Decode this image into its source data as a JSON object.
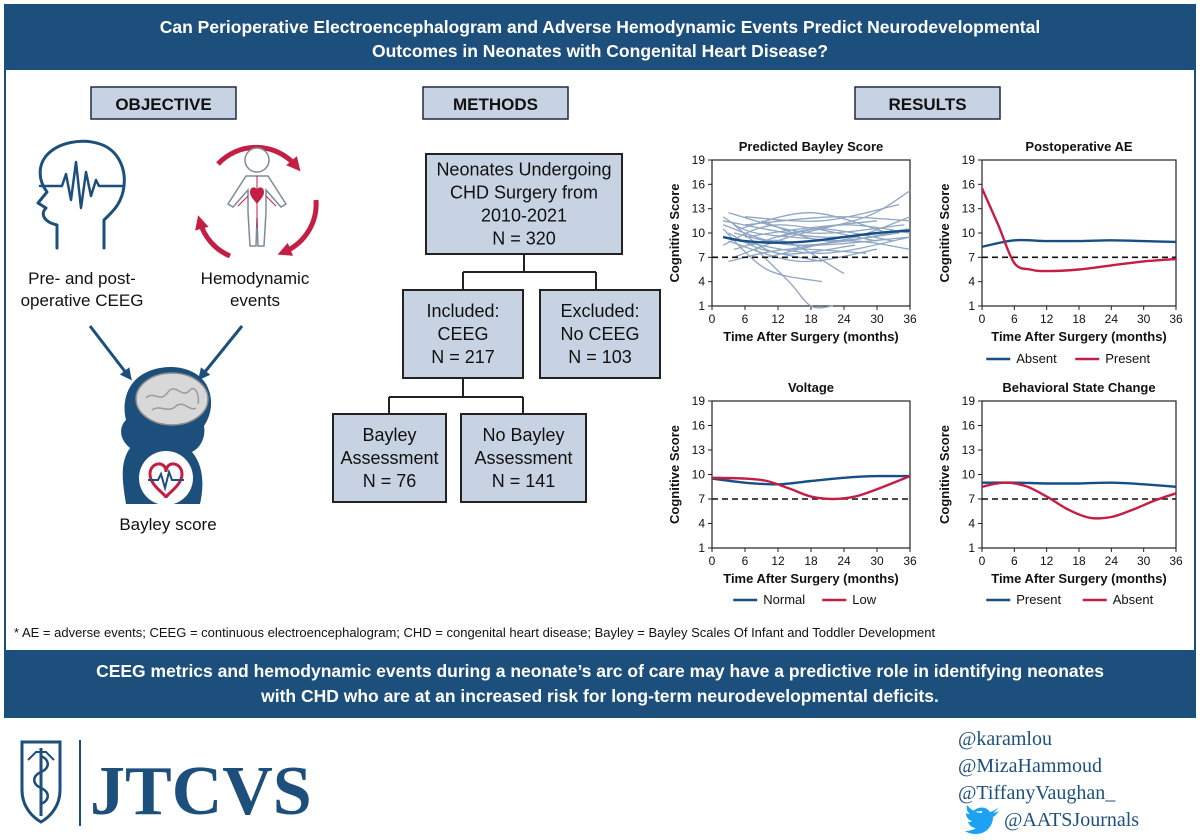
{
  "header": {
    "title_line1": "Can Perioperative Electroencephalogram and Adverse Hemodynamic Events Predict Neurodevelopmental",
    "title_line2": "Outcomes in Neonates with Congenital Heart Disease?"
  },
  "sections": {
    "objective": "OBJECTIVE",
    "methods": "METHODS",
    "results": "RESULTS"
  },
  "objective": {
    "ceeg_line1": "Pre- and post-",
    "ceeg_line2": "operative CEEG",
    "hemo_line1": "Hemodynamic",
    "hemo_line2": "events",
    "bayley": "Bayley score"
  },
  "flowchart": {
    "root": [
      "Neonates Undergoing",
      "CHD Surgery from",
      "2010-2021",
      "N = 320"
    ],
    "included": [
      "Included:",
      "CEEG",
      "N = 217"
    ],
    "excluded": [
      "Excluded:",
      "No CEEG",
      "N = 103"
    ],
    "bayley": [
      "Bayley",
      "Assessment",
      "N = 76"
    ],
    "no_bayley": [
      "No Bayley",
      "Assessment",
      "N = 141"
    ]
  },
  "colors": {
    "navy": "#1d4f7c",
    "pale_blue": "#c7d2e2",
    "crimson": "#c41e45",
    "blue_line": "#164f86",
    "spaghetti": "#8fa6c3"
  },
  "chart_data": [
    {
      "type": "line",
      "title": "Predicted Bayley Score",
      "xlabel": "Time After Surgery (months)",
      "ylabel": "Cognitive Score",
      "xlim": [
        0,
        36
      ],
      "ylim": [
        1,
        19
      ],
      "xticks": [
        0,
        6,
        12,
        18,
        24,
        30,
        36
      ],
      "yticks": [
        1,
        4,
        7,
        10,
        13,
        16,
        19
      ],
      "reference_line": 7,
      "series": [
        {
          "x": [
            2,
            6,
            12,
            18,
            24,
            30,
            36
          ],
          "y": [
            9.5,
            9.0,
            8.8,
            9.0,
            9.5,
            10.0,
            10.3
          ]
        }
      ],
      "individual_trajectories": [
        {
          "x": [
            2,
            20,
            36
          ],
          "y": [
            11.5,
            9.5,
            10.5
          ]
        },
        {
          "x": [
            3,
            18,
            35
          ],
          "y": [
            12.5,
            10.0,
            11.0
          ]
        },
        {
          "x": [
            4,
            16,
            34
          ],
          "y": [
            10.0,
            8.5,
            10.0
          ]
        },
        {
          "x": [
            2,
            12,
            30
          ],
          "y": [
            8.5,
            11.0,
            9.0
          ]
        },
        {
          "x": [
            5,
            20,
            36
          ],
          "y": [
            9.0,
            7.5,
            9.5
          ]
        },
        {
          "x": [
            3,
            14,
            28
          ],
          "y": [
            6.5,
            8.0,
            7.5
          ]
        },
        {
          "x": [
            6,
            22,
            36
          ],
          "y": [
            11.0,
            12.0,
            11.5
          ]
        },
        {
          "x": [
            2,
            10,
            20
          ],
          "y": [
            10.5,
            5.5,
            4.0
          ]
        },
        {
          "x": [
            8,
            14,
            18,
            22
          ],
          "y": [
            8.0,
            4.0,
            1.0,
            1.0
          ]
        },
        {
          "x": [
            4,
            14,
            28,
            36
          ],
          "y": [
            7.0,
            9.5,
            12.0,
            15.2
          ]
        },
        {
          "x": [
            6,
            20,
            34
          ],
          "y": [
            12.0,
            11.5,
            13.5
          ]
        },
        {
          "x": [
            3,
            16,
            30
          ],
          "y": [
            9.0,
            6.5,
            8.0
          ]
        },
        {
          "x": [
            10,
            24,
            36
          ],
          "y": [
            7.0,
            9.0,
            8.0
          ]
        },
        {
          "x": [
            2,
            8,
            24
          ],
          "y": [
            12.0,
            10.0,
            9.0
          ]
        },
        {
          "x": [
            5,
            18,
            32
          ],
          "y": [
            10.5,
            12.5,
            10.0
          ]
        },
        {
          "x": [
            12,
            24,
            36
          ],
          "y": [
            9.5,
            11.0,
            10.0
          ]
        },
        {
          "x": [
            4,
            12,
            26
          ],
          "y": [
            11.0,
            7.5,
            8.5
          ]
        },
        {
          "x": [
            7,
            19,
            33
          ],
          "y": [
            8.5,
            10.5,
            9.0
          ]
        },
        {
          "x": [
            14,
            26,
            36
          ],
          "y": [
            8.0,
            9.5,
            12.0
          ]
        },
        {
          "x": [
            3,
            9,
            20
          ],
          "y": [
            10.0,
            8.0,
            6.5
          ]
        },
        {
          "x": [
            6,
            16,
            30
          ],
          "y": [
            9.5,
            10.5,
            11.5
          ]
        },
        {
          "x": [
            2,
            15,
            36
          ],
          "y": [
            11.0,
            8.5,
            9.5
          ]
        },
        {
          "x": [
            9,
            21,
            36
          ],
          "y": [
            11.5,
            9.0,
            10.5
          ]
        },
        {
          "x": [
            4,
            13,
            24
          ],
          "y": [
            8.0,
            9.0,
            5.0
          ]
        }
      ]
    },
    {
      "type": "line",
      "title": "Postoperative AE",
      "xlabel": "Time After Surgery (months)",
      "ylabel": "Cognitive Score",
      "xlim": [
        0,
        36
      ],
      "ylim": [
        1,
        19
      ],
      "xticks": [
        0,
        6,
        12,
        18,
        24,
        30,
        36
      ],
      "yticks": [
        1,
        4,
        7,
        10,
        13,
        16,
        19
      ],
      "reference_line": 7,
      "legend": "bottom",
      "series": [
        {
          "name": "Absent",
          "color": "#164f86",
          "x": [
            0,
            6,
            12,
            18,
            24,
            30,
            36
          ],
          "y": [
            8.3,
            9.1,
            9.0,
            9.0,
            9.1,
            9.0,
            8.9
          ]
        },
        {
          "name": "Present",
          "color": "#c41e45",
          "x": [
            0,
            3,
            6,
            9,
            12,
            18,
            24,
            30,
            36
          ],
          "y": [
            15.5,
            11.0,
            6.3,
            5.5,
            5.3,
            5.5,
            6.0,
            6.5,
            6.8
          ]
        }
      ]
    },
    {
      "type": "line",
      "title": "Voltage",
      "xlabel": "Time After Surgery (months)",
      "ylabel": "Cognitive Score",
      "xlim": [
        0,
        36
      ],
      "ylim": [
        1,
        19
      ],
      "xticks": [
        0,
        6,
        12,
        18,
        24,
        30,
        36
      ],
      "yticks": [
        1,
        4,
        7,
        10,
        13,
        16,
        19
      ],
      "reference_line": 7,
      "legend": "bottom",
      "series": [
        {
          "name": "Normal",
          "color": "#164f86",
          "x": [
            0,
            6,
            12,
            18,
            24,
            30,
            36
          ],
          "y": [
            9.5,
            9.0,
            8.8,
            9.2,
            9.6,
            9.8,
            9.8
          ]
        },
        {
          "name": "Low",
          "color": "#c41e45",
          "x": [
            0,
            6,
            10,
            14,
            18,
            22,
            26,
            30,
            36
          ],
          "y": [
            9.6,
            9.5,
            9.2,
            8.3,
            7.3,
            7.0,
            7.3,
            8.2,
            9.8
          ]
        }
      ]
    },
    {
      "type": "line",
      "title": "Behavioral State Change",
      "xlabel": "Time After Surgery (months)",
      "ylabel": "Cognitive Score",
      "xlim": [
        0,
        36
      ],
      "ylim": [
        1,
        19
      ],
      "xticks": [
        0,
        6,
        12,
        18,
        24,
        30,
        36
      ],
      "yticks": [
        1,
        4,
        7,
        10,
        13,
        16,
        19
      ],
      "reference_line": 7,
      "legend": "bottom",
      "series": [
        {
          "name": "Present",
          "color": "#164f86",
          "x": [
            0,
            6,
            12,
            18,
            24,
            30,
            36
          ],
          "y": [
            9.0,
            9.0,
            8.9,
            8.9,
            9.0,
            8.8,
            8.5
          ]
        },
        {
          "name": "Absent",
          "color": "#c41e45",
          "x": [
            0,
            4,
            8,
            12,
            16,
            20,
            24,
            28,
            32,
            36
          ],
          "y": [
            8.5,
            9.0,
            8.6,
            7.3,
            5.7,
            4.7,
            4.8,
            5.7,
            6.8,
            7.7
          ]
        }
      ]
    }
  ],
  "footnote": "* AE = adverse events; CEEG = continuous electroencephalogram; CHD = congenital heart disease; Bayley = Bayley Scales Of Infant and Toddler Development",
  "conclusion": {
    "line1": "CEEG metrics and hemodynamic events during a neonate’s arc of care may have a predictive role in identifying neonates",
    "line2": "with CHD who are at an increased risk for long-term neurodevelopmental deficits."
  },
  "footer": {
    "logo": "JTCVS",
    "handles": [
      "@karamlou",
      "@MizaHammoud",
      "@TiffanyVaughan_",
      "@AATSJournals"
    ]
  }
}
